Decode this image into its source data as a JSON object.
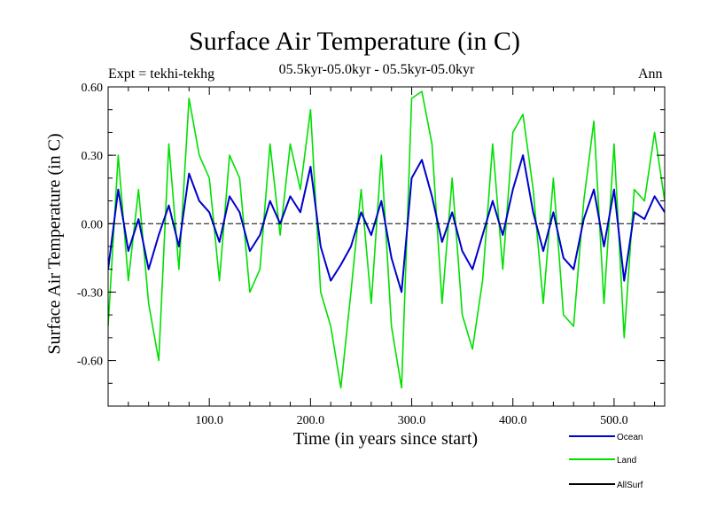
{
  "chart_data": {
    "type": "line",
    "title": "Surface Air Temperature (in C)",
    "subtitle": "05.5kyr-05.0kyr - 05.5kyr-05.0kyr",
    "expt_label": "Expt = tekhi-tekhg",
    "period_label": "Ann",
    "xlabel": "Time (in years since start)",
    "ylabel": "Surface Air Temperature (in C)",
    "xlim": [
      0,
      550
    ],
    "ylim": [
      -0.8,
      0.6
    ],
    "y_ticks": [
      0.6,
      0.3,
      0.0,
      -0.3,
      -0.6
    ],
    "y_tick_labels": [
      "0.60",
      "0.30",
      "0.00",
      "-0.30",
      "-0.60"
    ],
    "x_ticks": [
      100,
      200,
      300,
      400,
      500
    ],
    "x_tick_labels": [
      "100.0",
      "200.0",
      "300.0",
      "400.0",
      "500.0"
    ],
    "zero_line": true,
    "legend_position": "bottom-right",
    "series": [
      {
        "name": "Ocean",
        "color": "#0000cc",
        "x": [
          0,
          10,
          20,
          30,
          40,
          50,
          60,
          70,
          80,
          90,
          100,
          110,
          120,
          130,
          140,
          150,
          160,
          170,
          180,
          190,
          200,
          210,
          220,
          230,
          240,
          250,
          260,
          270,
          280,
          290,
          300,
          310,
          320,
          330,
          340,
          350,
          360,
          370,
          380,
          390,
          400,
          410,
          420,
          430,
          440,
          450,
          460,
          470,
          480,
          490,
          500,
          510,
          520,
          530,
          540,
          550
        ],
        "values": [
          -0.2,
          0.15,
          -0.12,
          0.02,
          -0.2,
          -0.05,
          0.08,
          -0.1,
          0.22,
          0.1,
          0.05,
          -0.08,
          0.12,
          0.05,
          -0.12,
          -0.05,
          0.1,
          0.0,
          0.12,
          0.05,
          0.25,
          -0.1,
          -0.25,
          -0.18,
          -0.1,
          0.05,
          -0.05,
          0.1,
          -0.15,
          -0.3,
          0.2,
          0.28,
          0.12,
          -0.08,
          0.05,
          -0.12,
          -0.2,
          -0.05,
          0.1,
          -0.05,
          0.15,
          0.3,
          0.05,
          -0.12,
          0.05,
          -0.15,
          -0.2,
          0.02,
          0.15,
          -0.1,
          0.15,
          -0.25,
          0.05,
          0.02,
          0.12,
          0.05
        ]
      },
      {
        "name": "Land",
        "color": "#00e000",
        "x": [
          0,
          10,
          20,
          30,
          40,
          50,
          60,
          70,
          80,
          90,
          100,
          110,
          120,
          130,
          140,
          150,
          160,
          170,
          180,
          190,
          200,
          210,
          220,
          230,
          240,
          250,
          260,
          270,
          280,
          290,
          300,
          310,
          320,
          330,
          340,
          350,
          360,
          370,
          380,
          390,
          400,
          410,
          420,
          430,
          440,
          450,
          460,
          470,
          480,
          490,
          500,
          510,
          520,
          530,
          540,
          550
        ],
        "values": [
          -0.45,
          0.3,
          -0.25,
          0.15,
          -0.35,
          -0.6,
          0.35,
          -0.2,
          0.55,
          0.3,
          0.2,
          -0.25,
          0.3,
          0.2,
          -0.3,
          -0.2,
          0.35,
          -0.05,
          0.35,
          0.15,
          0.5,
          -0.3,
          -0.45,
          -0.72,
          -0.3,
          0.15,
          -0.35,
          0.3,
          -0.45,
          -0.72,
          0.55,
          0.58,
          0.35,
          -0.35,
          0.2,
          -0.4,
          -0.55,
          -0.25,
          0.35,
          -0.2,
          0.4,
          0.48,
          0.15,
          -0.35,
          0.2,
          -0.4,
          -0.45,
          0.1,
          0.45,
          -0.35,
          0.35,
          -0.5,
          0.15,
          0.1,
          0.4,
          0.1
        ]
      },
      {
        "name": "AllSurf",
        "color": "#000000",
        "x": [],
        "values": []
      }
    ]
  }
}
